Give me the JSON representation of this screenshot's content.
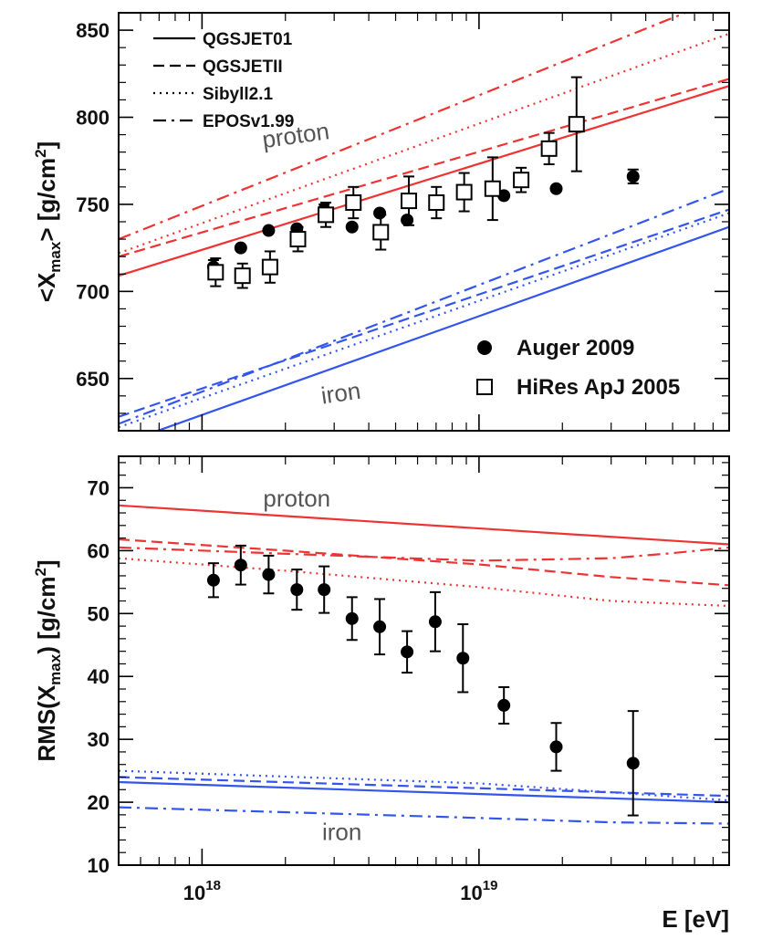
{
  "chart_data": [
    {
      "type": "line",
      "ylabel": "<X",
      "ylabel_sub": "max",
      "ylabel_tail": "> [g/cm",
      "ylabel_sup": "2",
      "ylabel_end": "]",
      "xscale": "log",
      "xlim": [
        5e+17,
        8e+19
      ],
      "ylim": [
        620,
        860
      ],
      "yticks": [
        650,
        700,
        750,
        800,
        850
      ],
      "legend": {
        "placement": "top-left",
        "entries": [
          {
            "name": "QGSJET01",
            "dash": "solid"
          },
          {
            "name": "QGSJETII",
            "dash": "dashed"
          },
          {
            "name": "Sibyll2.1",
            "dash": "dotted"
          },
          {
            "name": "EPOSv1.99",
            "dash": "dashdot"
          }
        ]
      },
      "data_legend": {
        "placement": "bottom-right",
        "entries": [
          {
            "name": "Auger 2009",
            "marker": "filled-circle"
          },
          {
            "name": "HiRes ApJ 2005",
            "marker": "open-square"
          }
        ]
      },
      "annotations": [
        {
          "text": "proton",
          "color": "#555555",
          "rotate": -8,
          "x": 2.2e+18,
          "y": 785
        },
        {
          "text": "iron",
          "color": "#555555",
          "rotate": -8,
          "x": 3.2e+18,
          "y": 637
        }
      ],
      "model_lines": [
        {
          "group": "proton",
          "model": "QGSJET01",
          "dash": "solid",
          "color": "#ee3333",
          "x": [
            5e+17,
            8e+19
          ],
          "y": [
            709,
            818
          ]
        },
        {
          "group": "proton",
          "model": "QGSJETII",
          "dash": "dashed",
          "color": "#ee3333",
          "x": [
            5e+17,
            8e+19
          ],
          "y": [
            720,
            822
          ]
        },
        {
          "group": "proton",
          "model": "Sibyll2.1",
          "dash": "dotted",
          "color": "#ee3333",
          "x": [
            5e+17,
            8e+19
          ],
          "y": [
            722,
            848
          ]
        },
        {
          "group": "proton",
          "model": "EPOSv1.99",
          "dash": "dashdot",
          "color": "#ee3333",
          "x": [
            5e+17,
            8e+19
          ],
          "y": [
            730,
            870
          ]
        },
        {
          "group": "iron",
          "model": "QGSJET01",
          "dash": "solid",
          "color": "#3355ee",
          "x": [
            5e+17,
            8e+19
          ],
          "y": [
            612,
            737
          ]
        },
        {
          "group": "iron",
          "model": "QGSJETII",
          "dash": "dashed",
          "color": "#3355ee",
          "x": [
            5e+17,
            8e+19
          ],
          "y": [
            628,
            747
          ]
        },
        {
          "group": "iron",
          "model": "Sibyll2.1",
          "dash": "dotted",
          "color": "#3355ee",
          "x": [
            5e+17,
            8e+19
          ],
          "y": [
            622,
            745
          ]
        },
        {
          "group": "iron",
          "model": "EPOSv1.99",
          "dash": "dashdot",
          "color": "#3355ee",
          "x": [
            5e+17,
            8e+19
          ],
          "y": [
            624,
            759
          ]
        }
      ],
      "series": [
        {
          "name": "Auger 2009",
          "marker": "filled-circle",
          "points": [
            {
              "x": 1.1e+18,
              "y": 714,
              "err": 4
            },
            {
              "x": 1.38e+18,
              "y": 725,
              "err": 0
            },
            {
              "x": 1.74e+18,
              "y": 735,
              "err": 0
            },
            {
              "x": 2.2e+18,
              "y": 736,
              "err": 0
            },
            {
              "x": 2.76e+18,
              "y": 747,
              "err": 3
            },
            {
              "x": 3.48e+18,
              "y": 737,
              "err": 0
            },
            {
              "x": 4.38e+18,
              "y": 745,
              "err": 0
            },
            {
              "x": 5.5e+18,
              "y": 741,
              "err": 0
            },
            {
              "x": 6.95e+18,
              "y": 751,
              "err": 0
            },
            {
              "x": 8.75e+18,
              "y": 756,
              "err": 0
            },
            {
              "x": 1.23e+19,
              "y": 755,
              "err": 0
            },
            {
              "x": 1.9e+19,
              "y": 759,
              "err": 0
            },
            {
              "x": 3.6e+19,
              "y": 766,
              "err": 4
            }
          ]
        },
        {
          "name": "HiRes ApJ 2005",
          "marker": "open-square",
          "points": [
            {
              "x": 1.12e+18,
              "y": 711,
              "err": 8
            },
            {
              "x": 1.4e+18,
              "y": 709,
              "err": 7
            },
            {
              "x": 1.76e+18,
              "y": 714,
              "err": 9
            },
            {
              "x": 2.22e+18,
              "y": 730,
              "err": 7
            },
            {
              "x": 2.8e+18,
              "y": 744,
              "err": 7
            },
            {
              "x": 3.52e+18,
              "y": 751,
              "err": 9
            },
            {
              "x": 4.42e+18,
              "y": 734,
              "err": 10
            },
            {
              "x": 5.58e+18,
              "y": 752,
              "err": 14
            },
            {
              "x": 7.02e+18,
              "y": 751,
              "err": 9
            },
            {
              "x": 8.84e+18,
              "y": 757,
              "err": 11
            },
            {
              "x": 1.12e+19,
              "y": 759,
              "err": 18
            },
            {
              "x": 1.42e+19,
              "y": 764,
              "err": 7
            },
            {
              "x": 1.79e+19,
              "y": 782,
              "err": 9
            },
            {
              "x": 2.25e+19,
              "y": 796,
              "err": 27
            }
          ]
        }
      ]
    },
    {
      "type": "line",
      "ylabel": "RMS(X",
      "ylabel_sub": "max",
      "ylabel_tail": ") [g/cm",
      "ylabel_sup": "2",
      "ylabel_end": "]",
      "xlabel": "E [eV]",
      "xscale": "log",
      "xlim": [
        5e+17,
        8e+19
      ],
      "ylim": [
        10,
        75
      ],
      "yticks": [
        10,
        20,
        30,
        40,
        50,
        60,
        70
      ],
      "xticks": [
        {
          "value": 1e+18,
          "base": "10",
          "exp": "18"
        },
        {
          "value": 1e+19,
          "base": "10",
          "exp": "19"
        }
      ],
      "annotations": [
        {
          "text": "proton",
          "color": "#555555",
          "rotate": 0,
          "x": 2.2e+18,
          "y": 67
        },
        {
          "text": "iron",
          "color": "#555555",
          "rotate": 0,
          "x": 3.2e+18,
          "y": 14
        }
      ],
      "model_lines": [
        {
          "group": "proton",
          "model": "QGSJET01",
          "dash": "solid",
          "color": "#ee3333",
          "x": [
            5e+17,
            8e+19
          ],
          "y": [
            67.2,
            61.0
          ]
        },
        {
          "group": "proton",
          "model": "QGSJETII",
          "dash": "dashed",
          "color": "#ee3333",
          "x": [
            5e+17,
            2e+18,
            1e+19,
            3e+19,
            8e+19
          ],
          "y": [
            61.8,
            60.0,
            57.8,
            55.8,
            54.5
          ]
        },
        {
          "group": "proton",
          "model": "Sibyll2.1",
          "dash": "dotted",
          "color": "#ee3333",
          "x": [
            5e+17,
            2e+18,
            1e+19,
            3e+19,
            8e+19
          ],
          "y": [
            58.8,
            56.8,
            54.2,
            52.0,
            51.2
          ]
        },
        {
          "group": "proton",
          "model": "EPOSv1.99",
          "dash": "dashdot",
          "color": "#ee3333",
          "x": [
            5e+17,
            2e+18,
            1e+19,
            3e+19,
            5e+19,
            8e+19
          ],
          "y": [
            60.5,
            59.5,
            58.4,
            58.8,
            59.6,
            60.5
          ]
        },
        {
          "group": "iron",
          "model": "QGSJET01",
          "dash": "solid",
          "color": "#3355ee",
          "x": [
            5e+17,
            8e+19
          ],
          "y": [
            23.2,
            20.0
          ]
        },
        {
          "group": "iron",
          "model": "QGSJETII",
          "dash": "dashed",
          "color": "#3355ee",
          "x": [
            5e+17,
            8e+19
          ],
          "y": [
            24.0,
            21.0
          ]
        },
        {
          "group": "iron",
          "model": "Sibyll2.1",
          "dash": "dotted",
          "color": "#3355ee",
          "x": [
            5e+17,
            1e+19,
            8e+19
          ],
          "y": [
            25.0,
            23.0,
            20.3
          ]
        },
        {
          "group": "iron",
          "model": "EPOSv1.99",
          "dash": "dashdot",
          "color": "#3355ee",
          "x": [
            5e+17,
            1e+19,
            3e+19,
            8e+19
          ],
          "y": [
            19.2,
            17.5,
            16.8,
            16.6
          ]
        }
      ],
      "series": [
        {
          "name": "Auger 2009",
          "marker": "filled-circle",
          "points": [
            {
              "x": 1.1e+18,
              "y": 55.3,
              "err": 2.7
            },
            {
              "x": 1.38e+18,
              "y": 57.7,
              "err": 3.1
            },
            {
              "x": 1.74e+18,
              "y": 56.2,
              "err": 3.0
            },
            {
              "x": 2.2e+18,
              "y": 53.8,
              "err": 3.2
            },
            {
              "x": 2.76e+18,
              "y": 53.8,
              "err": 3.7
            },
            {
              "x": 3.48e+18,
              "y": 49.2,
              "err": 3.4
            },
            {
              "x": 4.38e+18,
              "y": 47.9,
              "err": 4.4
            },
            {
              "x": 5.5e+18,
              "y": 43.9,
              "err": 3.3
            },
            {
              "x": 6.95e+18,
              "y": 48.7,
              "err": 4.7
            },
            {
              "x": 8.75e+18,
              "y": 42.9,
              "err": 5.4
            },
            {
              "x": 1.23e+19,
              "y": 35.4,
              "err": 2.9
            },
            {
              "x": 1.9e+19,
              "y": 28.8,
              "err": 3.8
            },
            {
              "x": 3.6e+19,
              "y": 26.2,
              "err": 8.3
            }
          ]
        }
      ]
    }
  ]
}
